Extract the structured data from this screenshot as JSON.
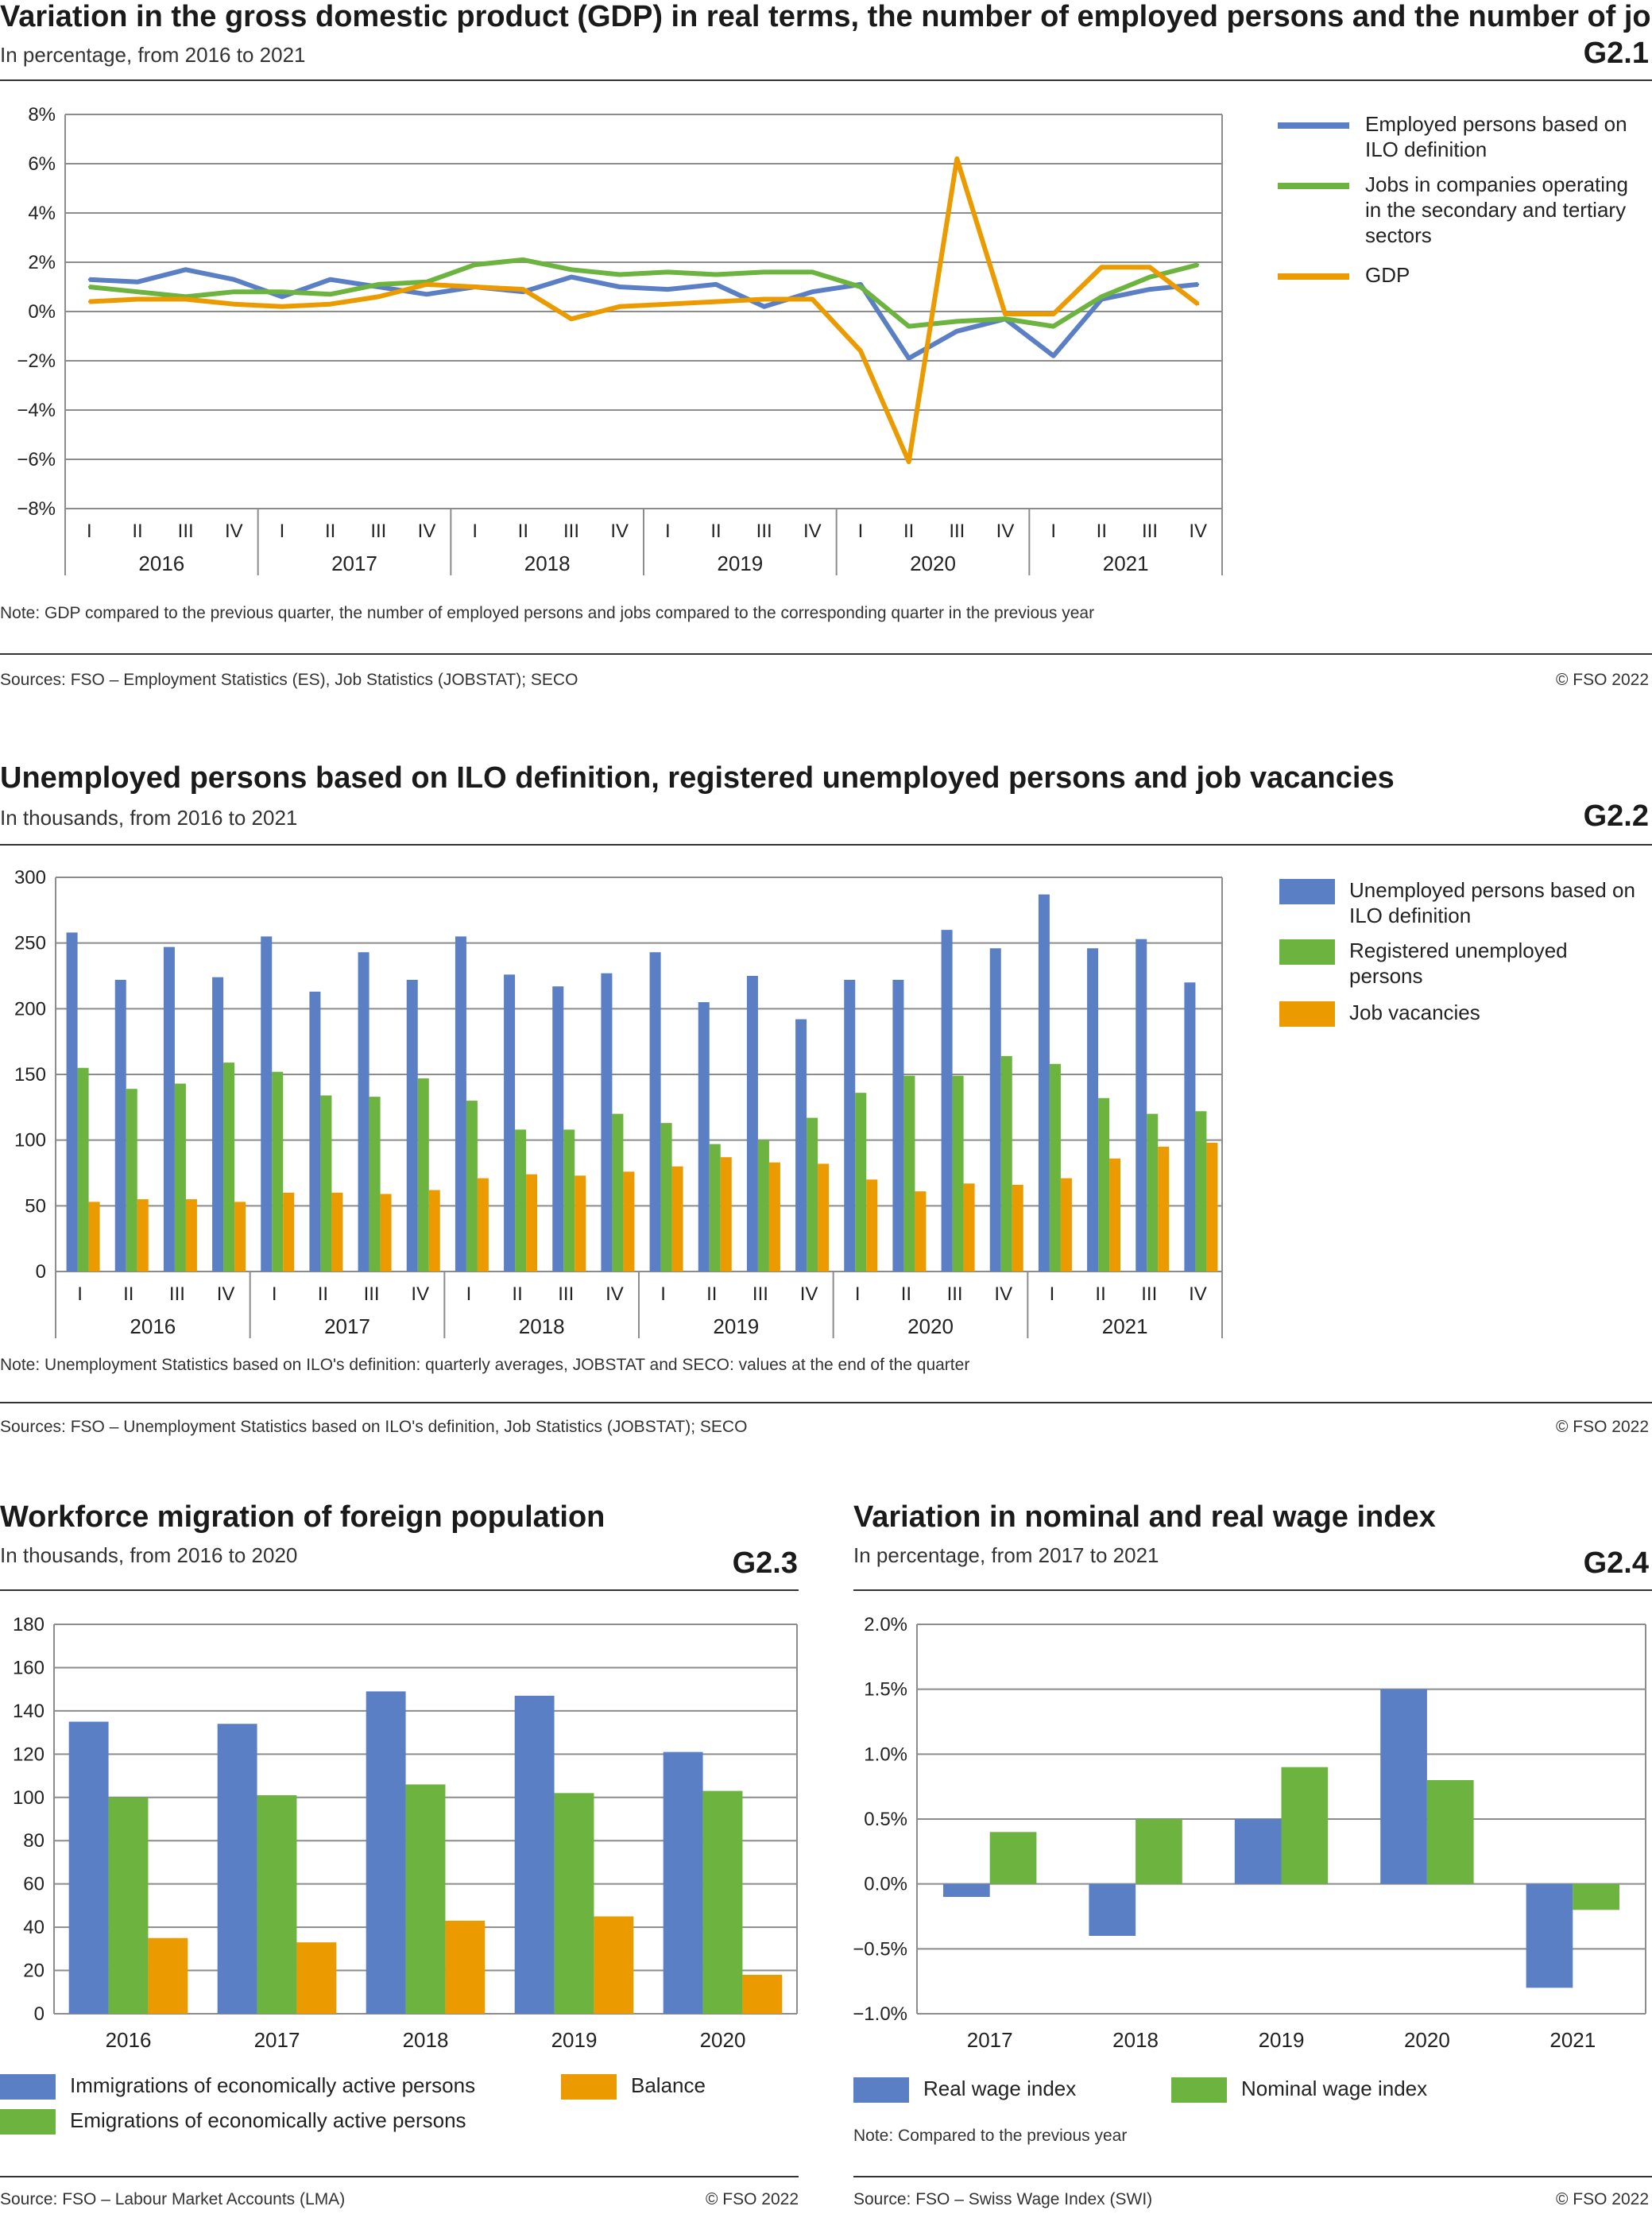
{
  "colors": {
    "blue": "#5b7fc4",
    "green": "#6db33f",
    "orange": "#eb9b00",
    "grid": "#8c8c8c"
  },
  "quarters": [
    "I",
    "II",
    "III",
    "IV"
  ],
  "years_2016_2021": [
    "2016",
    "2017",
    "2018",
    "2019",
    "2020",
    "2021"
  ],
  "g21": {
    "title": "Variation in the gross domestic product (GDP) in real terms, the number of employed persons and the number of jobs",
    "subtitle": "In percentage, from 2016 to 2021",
    "id": "G2.1",
    "note": "Note: GDP compared to the previous quarter, the number of employed persons and jobs compared to the corresponding quarter in the previous year",
    "source": "Sources: FSO – Employment Statistics (ES), Job Statistics (JOBSTAT); SECO",
    "copyright": "© FSO 2022",
    "legend": [
      "Employed persons based on ILO definition",
      "Jobs in companies operating in the secondary and tertiary sectors",
      "GDP"
    ]
  },
  "g22": {
    "title": "Unemployed persons based on ILO definition, registered unemployed persons and job vacancies",
    "subtitle": "In thousands, from 2016 to 2021",
    "id": "G2.2",
    "note": "Note: Unemployment Statistics based on ILO's definition: quarterly averages, JOBSTAT and SECO: values at the end of the quarter",
    "source": "Sources: FSO – Unemployment Statistics based on ILO's definition, Job Statistics (JOBSTAT); SECO",
    "copyright": "© FSO 2022",
    "legend": [
      "Unemployed persons based on ILO definition",
      "Registered unemployed persons",
      "Job vacancies"
    ]
  },
  "g23": {
    "title": "Workforce migration of foreign population",
    "subtitle": "In thousands, from 2016 to 2020",
    "id": "G2.3",
    "source": "Source: FSO – Labour Market Accounts (LMA)",
    "copyright": "© FSO 2022",
    "legend": [
      "Immigrations of economically active persons",
      "Balance",
      "Emigrations of economically active persons"
    ]
  },
  "g24": {
    "title": "Variation in nominal and real wage index",
    "subtitle": "In percentage, from 2017 to 2021",
    "id": "G2.4",
    "note": "Note: Compared to the previous year",
    "source": "Source: FSO – Swiss Wage Index (SWI)",
    "copyright": "© FSO 2022",
    "legend": [
      "Real wage index",
      "Nominal wage index"
    ]
  },
  "chart_data": [
    {
      "id": "G2.1",
      "type": "line",
      "ylim": [
        -8,
        8
      ],
      "yticks": [
        "−8%",
        "−6%",
        "−4%",
        "−2%",
        "0%",
        "2%",
        "4%",
        "6%",
        "8%"
      ],
      "grid": true,
      "legend_position": "right",
      "series": [
        {
          "name": "Employed persons based on ILO definition",
          "color": "#5b7fc4",
          "values": [
            1.3,
            1.2,
            1.7,
            1.3,
            0.6,
            1.3,
            1.0,
            0.7,
            1.0,
            0.8,
            1.4,
            1.0,
            0.9,
            1.1,
            0.2,
            0.8,
            1.1,
            -1.9,
            -0.8,
            -0.3,
            -1.8,
            0.5,
            0.9,
            1.1
          ]
        },
        {
          "name": "Jobs in companies operating in the secondary and tertiary sectors",
          "color": "#6db33f",
          "values": [
            1.0,
            0.8,
            0.6,
            0.8,
            0.8,
            0.7,
            1.1,
            1.2,
            1.9,
            2.1,
            1.7,
            1.5,
            1.6,
            1.5,
            1.6,
            1.6,
            1.0,
            -0.6,
            -0.4,
            -0.3,
            -0.6,
            0.6,
            1.4,
            1.9
          ]
        },
        {
          "name": "GDP",
          "color": "#eb9b00",
          "values": [
            0.4,
            0.5,
            0.5,
            0.3,
            0.2,
            0.3,
            0.6,
            1.1,
            1.0,
            0.9,
            -0.3,
            0.2,
            0.3,
            0.4,
            0.5,
            0.5,
            -1.6,
            -6.1,
            6.2,
            -0.1,
            -0.1,
            1.8,
            1.8,
            0.3
          ]
        }
      ]
    },
    {
      "id": "G2.2",
      "type": "bar",
      "ylim": [
        0,
        300
      ],
      "yticks": [
        "0",
        "50",
        "100",
        "150",
        "200",
        "250",
        "300"
      ],
      "grid": true,
      "legend_position": "right",
      "series": [
        {
          "name": "Unemployed persons based on ILO definition",
          "color": "#5b7fc4",
          "values": [
            258,
            222,
            247,
            224,
            255,
            213,
            243,
            222,
            255,
            226,
            217,
            227,
            243,
            205,
            225,
            192,
            222,
            222,
            260,
            246,
            287,
            246,
            253,
            220
          ]
        },
        {
          "name": "Registered unemployed persons",
          "color": "#6db33f",
          "values": [
            155,
            139,
            143,
            159,
            152,
            134,
            133,
            147,
            130,
            108,
            108,
            120,
            113,
            97,
            100,
            117,
            136,
            149,
            149,
            164,
            158,
            132,
            120,
            122
          ]
        },
        {
          "name": "Job vacancies",
          "color": "#eb9b00",
          "values": [
            53,
            55,
            55,
            53,
            60,
            60,
            59,
            62,
            71,
            74,
            73,
            76,
            80,
            87,
            83,
            82,
            70,
            61,
            67,
            66,
            71,
            86,
            95,
            98
          ]
        }
      ]
    },
    {
      "id": "G2.3",
      "type": "bar",
      "categories": [
        "2016",
        "2017",
        "2018",
        "2019",
        "2020"
      ],
      "ylim": [
        0,
        180
      ],
      "yticks": [
        "0",
        "20",
        "40",
        "60",
        "80",
        "100",
        "120",
        "140",
        "160",
        "180"
      ],
      "grid": true,
      "legend_position": "bottom",
      "series": [
        {
          "name": "Immigrations of economically active persons",
          "color": "#5b7fc4",
          "values": [
            135,
            134,
            149,
            147,
            121
          ]
        },
        {
          "name": "Emigrations of economically active persons",
          "color": "#6db33f",
          "values": [
            100,
            101,
            106,
            102,
            103
          ]
        },
        {
          "name": "Balance",
          "color": "#eb9b00",
          "values": [
            35,
            33,
            43,
            45,
            18
          ]
        }
      ]
    },
    {
      "id": "G2.4",
      "type": "bar",
      "categories": [
        "2017",
        "2018",
        "2019",
        "2020",
        "2021"
      ],
      "ylim": [
        -1.0,
        2.0
      ],
      "yticks": [
        "−1.0%",
        "−0.5%",
        "0.0%",
        "0.5%",
        "1.0%",
        "1.5%",
        "2.0%"
      ],
      "grid": true,
      "legend_position": "bottom",
      "series": [
        {
          "name": "Real wage index",
          "color": "#5b7fc4",
          "values": [
            -0.1,
            -0.4,
            0.5,
            1.5,
            -0.8
          ]
        },
        {
          "name": "Nominal wage index",
          "color": "#6db33f",
          "values": [
            0.4,
            0.5,
            0.9,
            0.8,
            -0.2
          ]
        }
      ]
    }
  ]
}
